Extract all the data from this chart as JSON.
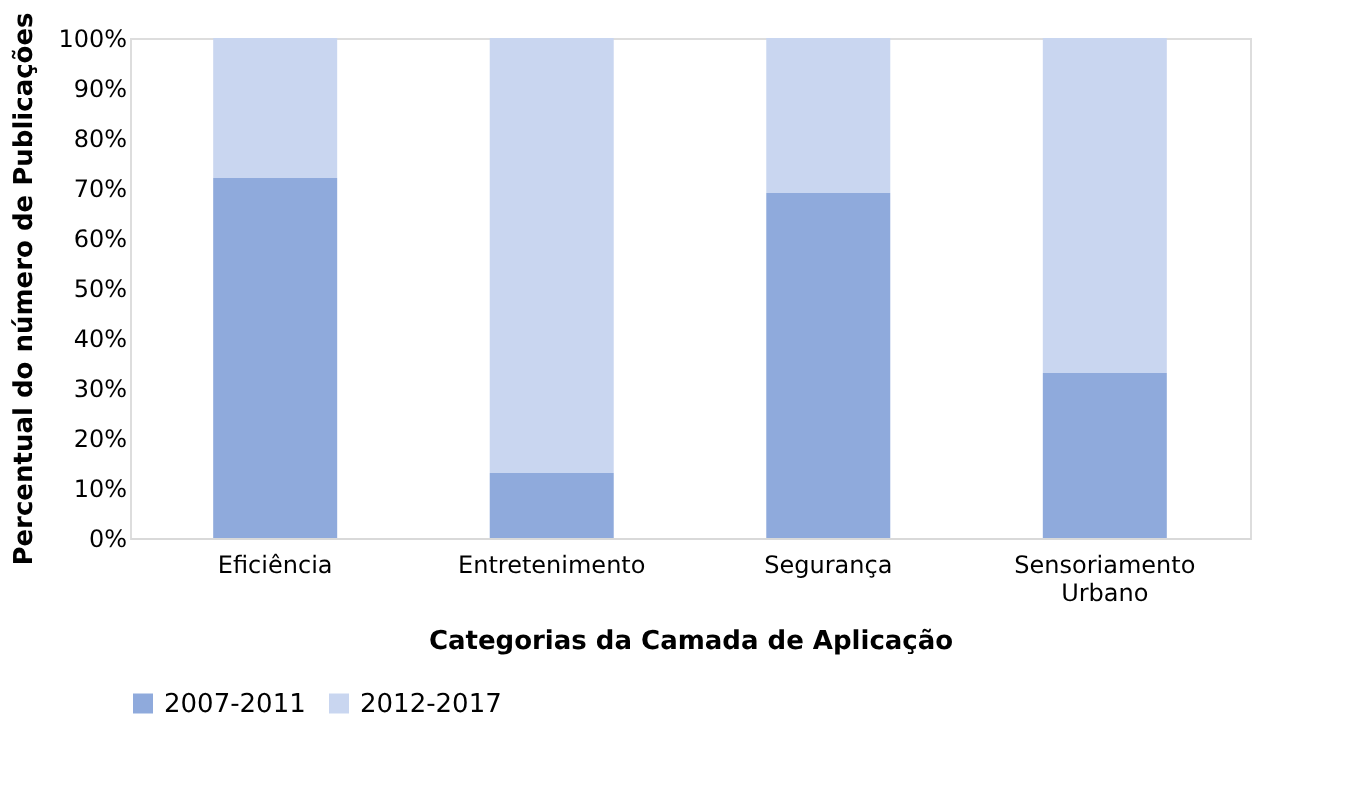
{
  "chart_data": {
    "type": "bar",
    "stacked": true,
    "xlabel": "Categorias da Camada de Aplicação",
    "ylabel": "Percentual do número de Publicações",
    "categories": [
      "Eficiência",
      "Entretenimento",
      "Segurança",
      "Sensoriamento Urbano"
    ],
    "series": [
      {
        "name": "2007-2011",
        "color": "#8faadc",
        "values": [
          72,
          13,
          69,
          33
        ]
      },
      {
        "name": "2012-2017",
        "color": "#c9d6f0",
        "values": [
          28,
          87,
          31,
          67
        ]
      }
    ],
    "ylim": [
      0,
      100
    ],
    "yticks": [
      {
        "value": 0,
        "label": "0%"
      },
      {
        "value": 10,
        "label": "10%"
      },
      {
        "value": 20,
        "label": "20%"
      },
      {
        "value": 30,
        "label": "30%"
      },
      {
        "value": 40,
        "label": "40%"
      },
      {
        "value": 50,
        "label": "50%"
      },
      {
        "value": 60,
        "label": "60%"
      },
      {
        "value": 70,
        "label": "70%"
      },
      {
        "value": 80,
        "label": "80%"
      },
      {
        "value": 90,
        "label": "90%"
      },
      {
        "value": 100,
        "label": "100%"
      }
    ],
    "grid": false,
    "legend": "bottom"
  }
}
